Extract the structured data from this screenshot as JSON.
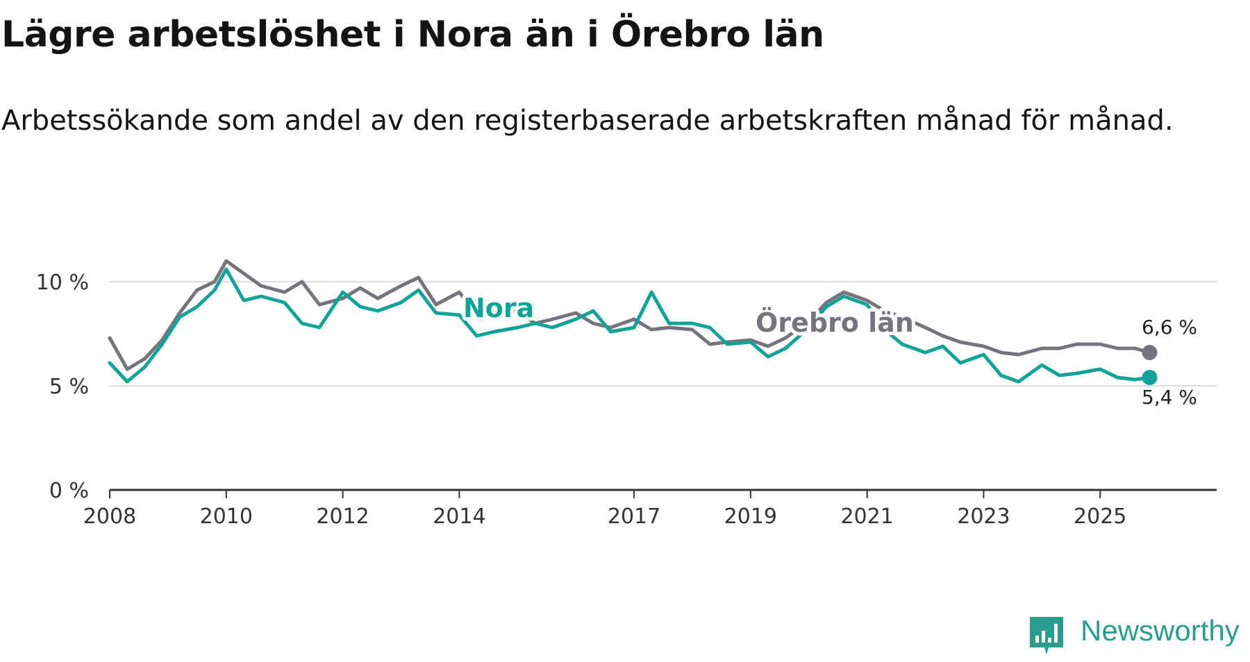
{
  "title": "Lägre arbetslöshet i Nora än i Örebro län",
  "subtitle": "Arbetssökande som andel av den registerbaserade arbetskraften månad för månad.",
  "brand": "Newsworthy",
  "colors": {
    "nora": "#11a398",
    "orebro": "#76737c",
    "grid": "#dddddd",
    "axis": "#333333"
  },
  "chart_data": {
    "type": "line",
    "title": "Lägre arbetslöshet i Nora än i Örebro län",
    "subtitle": "Arbetssökande som andel av den registerbaserade arbetskraften månad för månad.",
    "xlabel": "",
    "ylabel": "",
    "xlim": [
      2008.0,
      2027.0
    ],
    "ylim": [
      0,
      10
    ],
    "y_ticks": [
      0,
      5,
      10
    ],
    "y_tick_labels": [
      "0 %",
      "5 %",
      "10 %"
    ],
    "x_ticks": [
      2008,
      2010,
      2012,
      2014,
      2017,
      2019,
      2021,
      2023,
      2025
    ],
    "x_tick_labels": [
      "2008",
      "2010",
      "2012",
      "2014",
      "2017",
      "2019",
      "2021",
      "2023",
      "2025"
    ],
    "grid": true,
    "series": [
      {
        "name": "Örebro län",
        "label": "Örebro län",
        "end_label": "6,6 %",
        "x": [
          2008.0,
          2008.3,
          2008.6,
          2008.9,
          2009.2,
          2009.5,
          2009.8,
          2010.0,
          2010.3,
          2010.6,
          2011.0,
          2011.3,
          2011.6,
          2012.0,
          2012.3,
          2012.6,
          2013.0,
          2013.3,
          2013.6,
          2014.0,
          2014.3,
          2014.6,
          2015.0,
          2015.3,
          2015.6,
          2016.0,
          2016.3,
          2016.6,
          2017.0,
          2017.3,
          2017.6,
          2018.0,
          2018.3,
          2018.6,
          2019.0,
          2019.3,
          2019.6,
          2020.0,
          2020.3,
          2020.6,
          2021.0,
          2021.3,
          2021.6,
          2022.0,
          2022.3,
          2022.6,
          2023.0,
          2023.3,
          2023.6,
          2024.0,
          2024.3,
          2024.6,
          2025.0,
          2025.3,
          2025.6,
          2025.85
        ],
        "values": [
          7.3,
          5.8,
          6.3,
          7.2,
          8.5,
          9.6,
          10.0,
          11.0,
          10.4,
          9.8,
          9.5,
          10.0,
          8.9,
          9.2,
          9.7,
          9.2,
          9.8,
          10.2,
          8.9,
          9.5,
          8.4,
          8.5,
          8.6,
          8.0,
          8.2,
          8.5,
          8.0,
          7.8,
          8.2,
          7.7,
          7.8,
          7.7,
          7.0,
          7.1,
          7.2,
          6.9,
          7.3,
          8.1,
          9.0,
          9.5,
          9.1,
          8.6,
          8.3,
          7.8,
          7.4,
          7.1,
          6.9,
          6.6,
          6.5,
          6.8,
          6.8,
          7.0,
          7.0,
          6.8,
          6.8,
          6.6
        ]
      },
      {
        "name": "Nora",
        "label": "Nora",
        "end_label": "5,4 %",
        "x": [
          2008.0,
          2008.3,
          2008.6,
          2008.9,
          2009.2,
          2009.5,
          2009.8,
          2010.0,
          2010.3,
          2010.6,
          2011.0,
          2011.3,
          2011.6,
          2012.0,
          2012.3,
          2012.6,
          2013.0,
          2013.3,
          2013.6,
          2014.0,
          2014.3,
          2014.6,
          2015.0,
          2015.3,
          2015.6,
          2016.0,
          2016.3,
          2016.6,
          2017.0,
          2017.3,
          2017.6,
          2018.0,
          2018.3,
          2018.6,
          2019.0,
          2019.3,
          2019.6,
          2020.0,
          2020.3,
          2020.6,
          2021.0,
          2021.3,
          2021.6,
          2022.0,
          2022.3,
          2022.6,
          2023.0,
          2023.3,
          2023.6,
          2024.0,
          2024.3,
          2024.6,
          2025.0,
          2025.3,
          2025.6,
          2025.85
        ],
        "values": [
          6.1,
          5.2,
          5.9,
          7.0,
          8.3,
          8.8,
          9.6,
          10.6,
          9.1,
          9.3,
          9.0,
          8.0,
          7.8,
          9.5,
          8.8,
          8.6,
          9.0,
          9.6,
          8.5,
          8.4,
          7.4,
          7.6,
          7.8,
          8.0,
          7.8,
          8.2,
          8.6,
          7.6,
          7.8,
          9.5,
          8.0,
          8.0,
          7.8,
          7.0,
          7.1,
          6.4,
          6.8,
          7.8,
          8.8,
          9.3,
          8.9,
          7.7,
          7.0,
          6.6,
          6.9,
          6.1,
          6.5,
          5.5,
          5.2,
          6.0,
          5.5,
          5.6,
          5.8,
          5.4,
          5.3,
          5.4
        ]
      }
    ]
  }
}
